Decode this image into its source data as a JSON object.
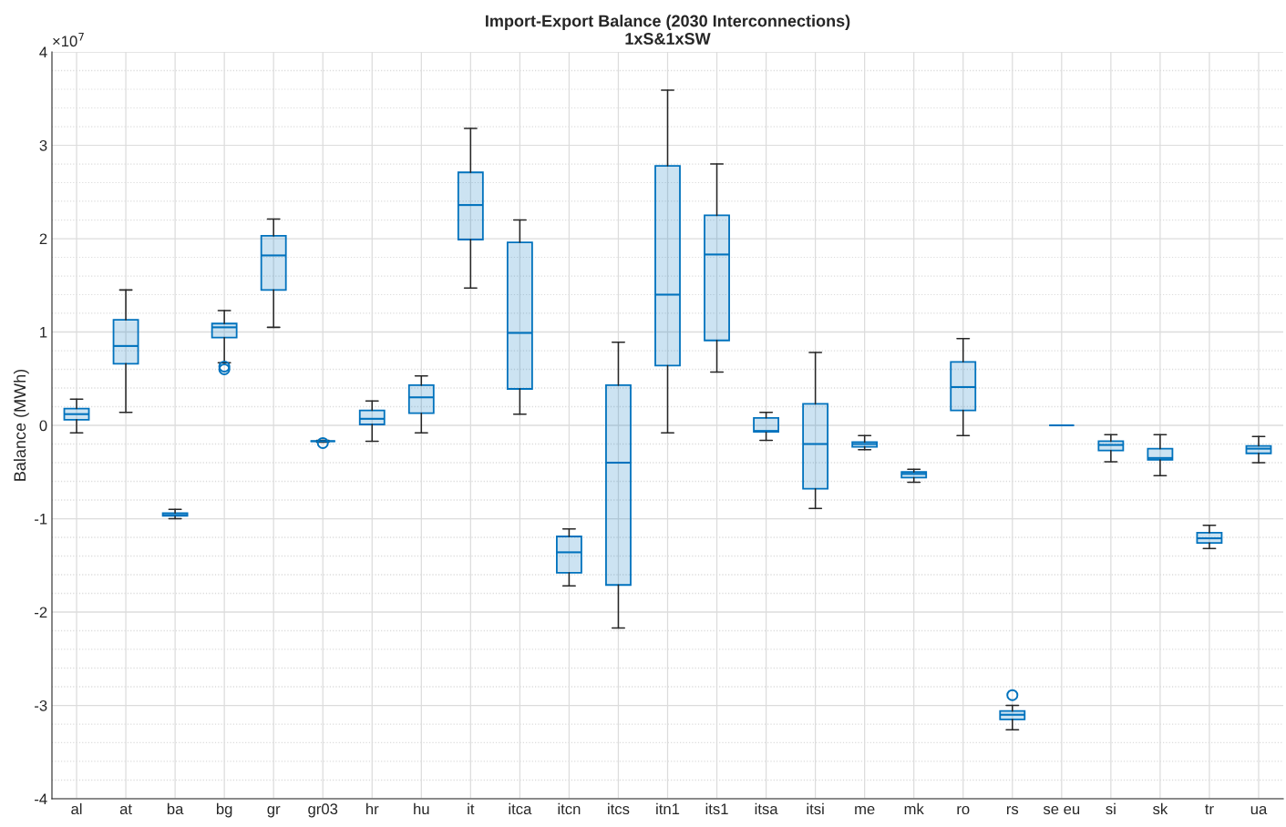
{
  "chart_data": {
    "type": "box",
    "title": "Import-Export Balance (2030 Interconnections)",
    "subtitle": "1xS&1xSW",
    "ylabel": "Balance (MWh)",
    "annotations": [
      "×10$^{7}$"
    ],
    "categories": [
      "al",
      "at",
      "ba",
      "bg",
      "gr",
      "gr03",
      "hr",
      "hu",
      "it",
      "itca",
      "itcn",
      "itcs",
      "itn1",
      "its1",
      "itsa",
      "itsi",
      "me",
      "mk",
      "ro",
      "rs",
      "se eu",
      "si",
      "sk",
      "tr",
      "ua"
    ],
    "boxes": [
      {
        "low": -0.08,
        "q1": 0.06,
        "median": 0.12,
        "q3": 0.18,
        "high": 0.28
      },
      {
        "low": 0.14,
        "q1": 0.66,
        "median": 0.85,
        "q3": 1.13,
        "high": 1.45
      },
      {
        "low": -1.0,
        "q1": -0.97,
        "median": -0.96,
        "q3": -0.94,
        "high": -0.9
      },
      {
        "low": 0.67,
        "q1": 0.94,
        "median": 1.05,
        "q3": 1.09,
        "high": 1.23,
        "outliers": [
          0.63,
          0.6
        ]
      },
      {
        "low": 1.05,
        "q1": 1.45,
        "median": 1.82,
        "q3": 2.03,
        "high": 2.21
      },
      {
        "low": -0.18,
        "q1": -0.17,
        "median": -0.17,
        "q3": -0.17,
        "high": -0.16,
        "outliers": [
          -0.19
        ]
      },
      {
        "low": -0.17,
        "q1": 0.01,
        "median": 0.07,
        "q3": 0.16,
        "high": 0.26
      },
      {
        "low": -0.08,
        "q1": 0.13,
        "median": 0.3,
        "q3": 0.43,
        "high": 0.53
      },
      {
        "low": 1.47,
        "q1": 1.99,
        "median": 2.36,
        "q3": 2.71,
        "high": 3.18
      },
      {
        "low": 0.12,
        "q1": 0.39,
        "median": 0.99,
        "q3": 1.96,
        "high": 2.2
      },
      {
        "low": -1.72,
        "q1": -1.58,
        "median": -1.36,
        "q3": -1.19,
        "high": -1.11
      },
      {
        "low": -2.17,
        "q1": -1.71,
        "median": -0.4,
        "q3": 0.43,
        "high": 0.89
      },
      {
        "low": -0.08,
        "q1": 0.64,
        "median": 1.4,
        "q3": 2.78,
        "high": 3.59
      },
      {
        "low": 0.57,
        "q1": 0.91,
        "median": 1.83,
        "q3": 2.25,
        "high": 2.8
      },
      {
        "low": -0.16,
        "q1": -0.07,
        "median": -0.06,
        "q3": 0.08,
        "high": 0.14
      },
      {
        "low": -0.89,
        "q1": -0.68,
        "median": -0.2,
        "q3": 0.23,
        "high": 0.78
      },
      {
        "low": -0.26,
        "q1": -0.23,
        "median": -0.2,
        "q3": -0.18,
        "high": -0.11
      },
      {
        "low": -0.61,
        "q1": -0.56,
        "median": -0.52,
        "q3": -0.5,
        "high": -0.47
      },
      {
        "low": -0.11,
        "q1": 0.16,
        "median": 0.41,
        "q3": 0.68,
        "high": 0.93
      },
      {
        "low": -3.26,
        "q1": -3.15,
        "median": -3.1,
        "q3": -3.06,
        "high": -3.0,
        "outliers": [
          -2.89
        ]
      },
      {
        "low": 0,
        "q1": 0,
        "median": 0,
        "q3": 0,
        "high": 0
      },
      {
        "low": -0.39,
        "q1": -0.27,
        "median": -0.21,
        "q3": -0.17,
        "high": -0.1
      },
      {
        "low": -0.54,
        "q1": -0.37,
        "median": -0.35,
        "q3": -0.25,
        "high": -0.1
      },
      {
        "low": -1.32,
        "q1": -1.26,
        "median": -1.21,
        "q3": -1.15,
        "high": -1.07
      },
      {
        "low": -0.4,
        "q1": -0.3,
        "median": -0.25,
        "q3": -0.22,
        "high": -0.12
      }
    ],
    "color": "#0072bd",
    "ylim": [
      -4,
      4
    ],
    "yticks": [
      -4,
      -3,
      -2,
      -1,
      0,
      1,
      2,
      3,
      4
    ],
    "grid": true
  }
}
